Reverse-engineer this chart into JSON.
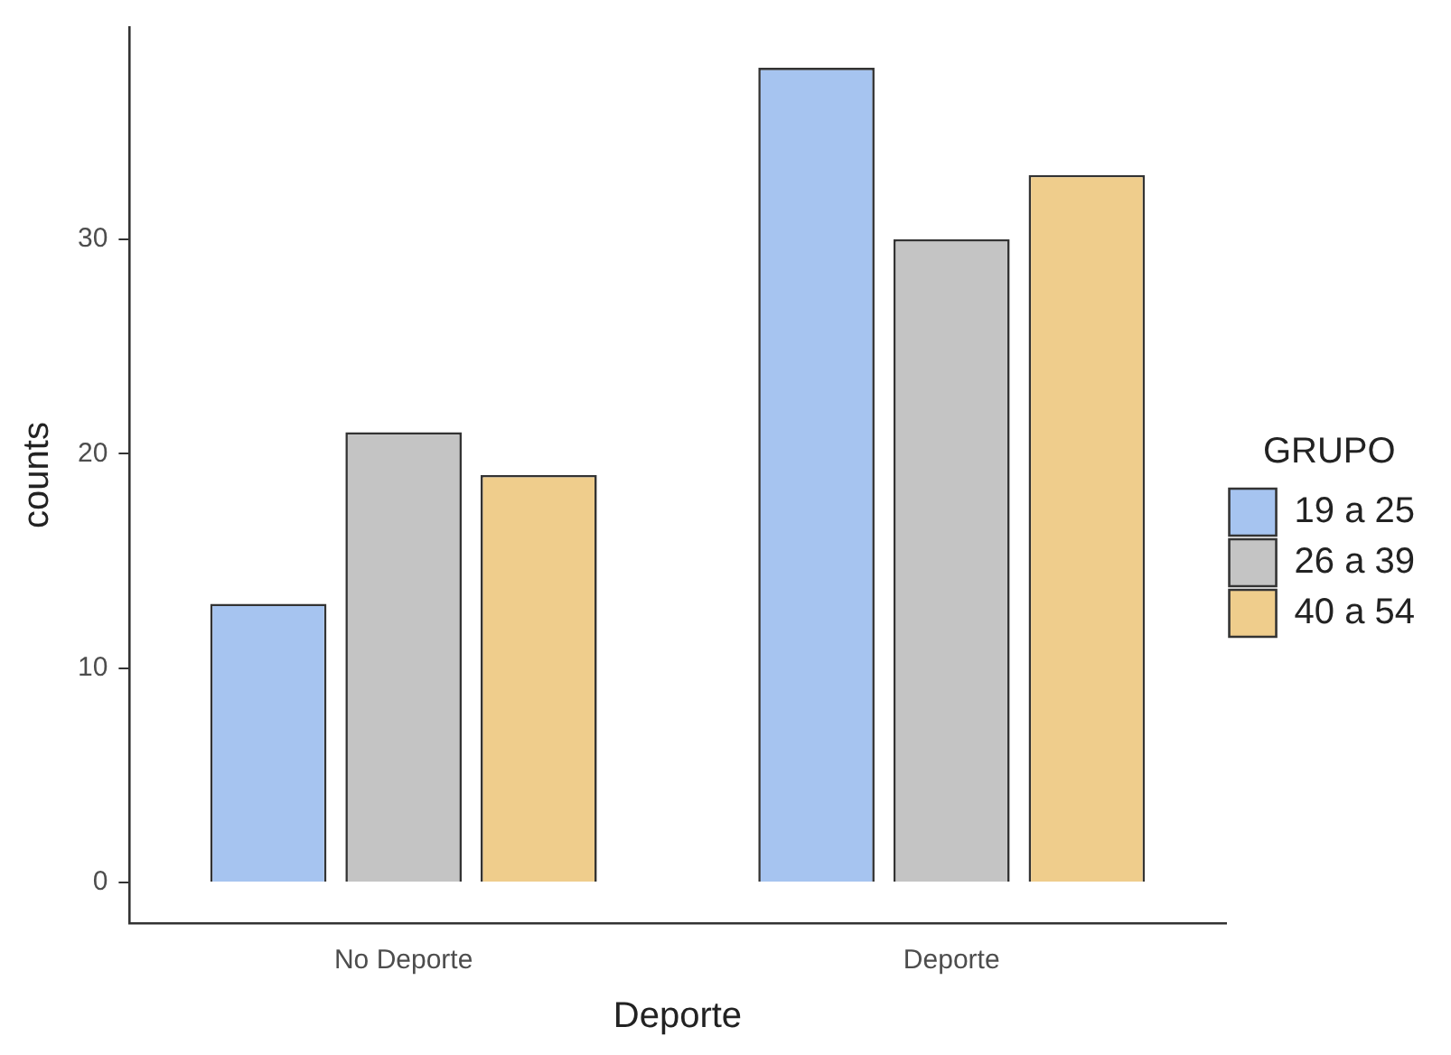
{
  "chart_data": {
    "type": "bar",
    "xlabel": "Deporte",
    "ylabel": "counts",
    "legend_title": "GRUPO",
    "legend": "right",
    "grid": false,
    "categories": [
      "No Deporte",
      "Deporte"
    ],
    "ylim": [
      -1.9,
      39.9
    ],
    "yticks": [
      0,
      10,
      20,
      30
    ],
    "series": [
      {
        "name": "19 a 25",
        "color": "#a6c4f0",
        "values": [
          13,
          38
        ]
      },
      {
        "name": "26 a 39",
        "color": "#c4c4c4",
        "values": [
          21,
          30
        ]
      },
      {
        "name": "40 a 54",
        "color": "#efcd8c",
        "values": [
          19,
          33
        ]
      }
    ]
  }
}
